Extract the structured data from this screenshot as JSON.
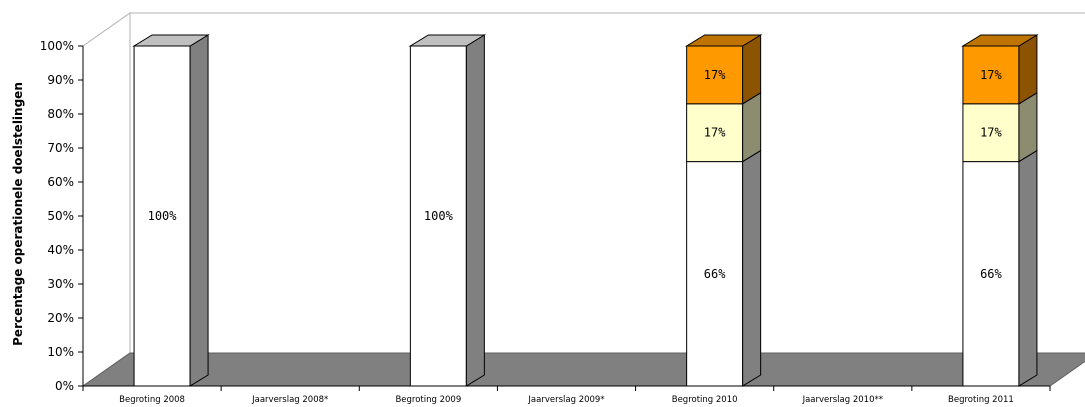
{
  "chart_data": {
    "type": "bar",
    "stacked": true,
    "three_d": true,
    "ylabel": "Percentage operationele doelstelingen",
    "xlabel": "",
    "ylim": [
      0,
      100
    ],
    "ytick_labels": [
      "0%",
      "10%",
      "20%",
      "30%",
      "40%",
      "50%",
      "60%",
      "70%",
      "80%",
      "90%",
      "100%"
    ],
    "categories": [
      "Begroting 2008",
      "Jaarverslag 2008*",
      "Begroting 2009",
      "Jaarverslag 2009*",
      "Begroting 2010",
      "Jaarverslag 2010**",
      "Begroting 2011"
    ],
    "series": [
      {
        "color": "#ffffff",
        "values": [
          100,
          0,
          100,
          0,
          66,
          0,
          66
        ],
        "labels": [
          "100%",
          "",
          "100%",
          "",
          "66%",
          "",
          "66%"
        ]
      },
      {
        "color": "#ffffcc",
        "values": [
          0,
          0,
          0,
          0,
          17,
          0,
          17
        ],
        "labels": [
          "",
          "",
          "",
          "",
          "17%",
          "",
          "17%"
        ]
      },
      {
        "color": "#ff9900",
        "values": [
          0,
          0,
          0,
          0,
          17,
          0,
          17
        ],
        "labels": [
          "",
          "",
          "",
          "",
          "17%",
          "",
          "17%"
        ]
      }
    ],
    "grid": false,
    "floor_color": "#808080"
  }
}
